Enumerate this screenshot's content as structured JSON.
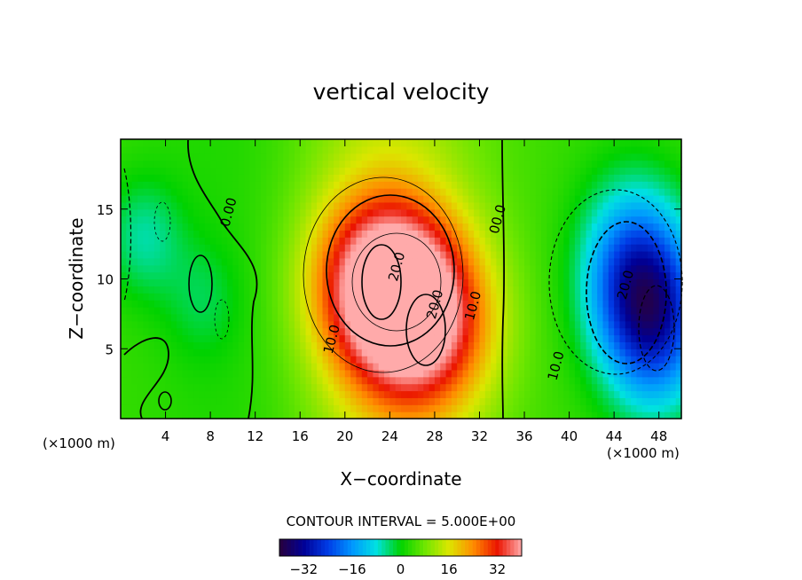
{
  "chart_data": {
    "type": "heatmap",
    "title": "vertical velocity",
    "xlabel": "X−coordinate",
    "ylabel": "Z−coordinate",
    "x_unit_left": "(×1000 m)",
    "x_unit_right": "(×1000 m)",
    "xlim": [
      0,
      50
    ],
    "ylim": [
      0,
      20
    ],
    "x_ticks": [
      4,
      8,
      12,
      16,
      20,
      24,
      28,
      32,
      36,
      40,
      44,
      48
    ],
    "y_ticks": [
      5,
      10,
      15
    ],
    "contour_interval_text": "CONTOUR INTERVAL = 5.000E+00",
    "colorbar": {
      "range": [
        -40,
        40
      ],
      "ticks": [
        -32,
        -16,
        0,
        16,
        32
      ],
      "tick_labels": [
        "−32",
        "−16",
        "0",
        "16",
        "32"
      ]
    },
    "features": [
      {
        "kind": "updraft",
        "x": 23.3,
        "z": 9.6,
        "value": 35
      },
      {
        "kind": "updraft",
        "x": 27.3,
        "z": 6.8,
        "value": 27
      },
      {
        "kind": "downdraft",
        "x": 45.5,
        "z": 10.5,
        "value": -22
      },
      {
        "kind": "downdraft",
        "x": 47.8,
        "z": 7.0,
        "value": -27
      },
      {
        "kind": "weak",
        "x": 2.0,
        "z": 13.0,
        "value": -9
      },
      {
        "kind": "weak",
        "x": 7.3,
        "z": 8.5,
        "value": -5
      }
    ],
    "contour_labels": [
      {
        "text": "0.00",
        "x": 10.0,
        "z": 14.7
      },
      {
        "text": "20.0",
        "x": 25.0,
        "z": 10.8
      },
      {
        "text": "20.0",
        "x": 28.4,
        "z": 8.1
      },
      {
        "text": "10.0",
        "x": 19.2,
        "z": 5.6
      },
      {
        "text": "10.0",
        "x": 31.8,
        "z": 8.0
      },
      {
        "text": "00.0",
        "x": 34.0,
        "z": 14.2
      },
      {
        "text": "20.0",
        "x": 45.4,
        "z": 9.5
      },
      {
        "text": "10.0",
        "x": 39.2,
        "z": 3.7
      }
    ]
  }
}
